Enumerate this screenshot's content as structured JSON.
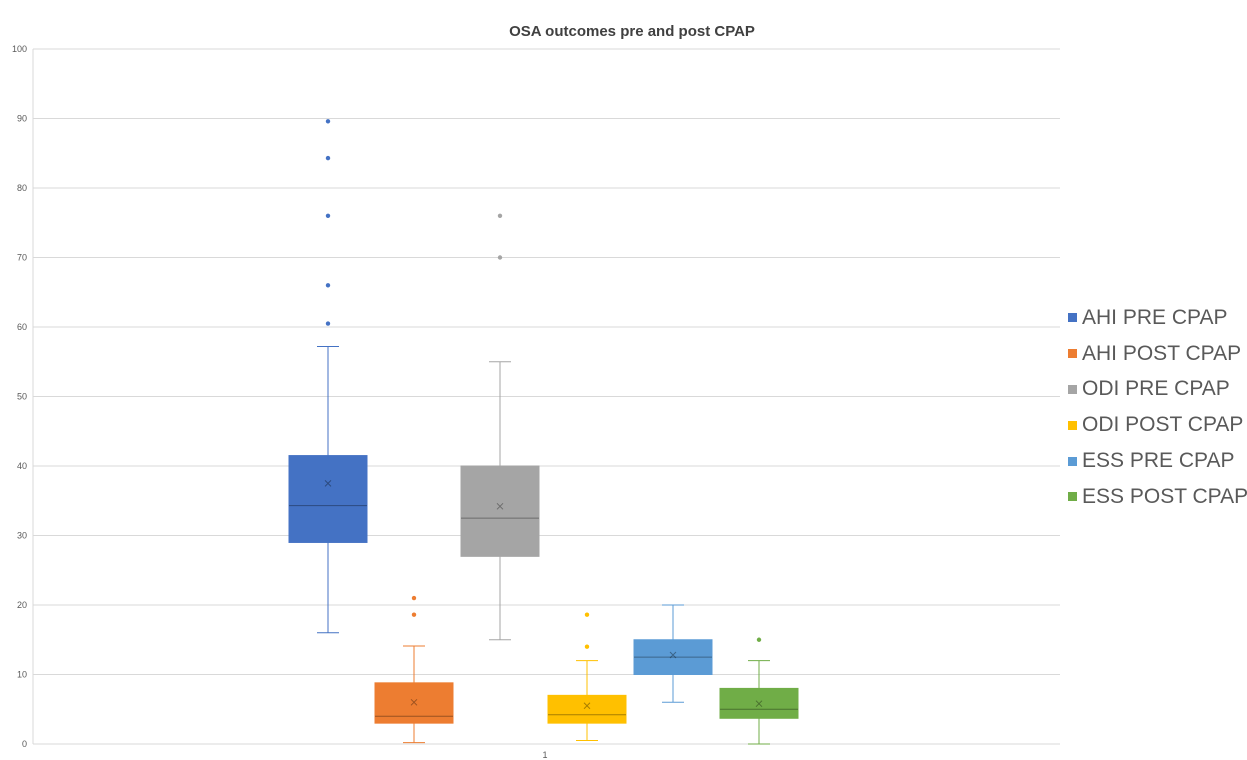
{
  "chart_data": {
    "type": "box",
    "title": "OSA outcomes pre and post CPAP",
    "xlabel": "",
    "ylabel": "",
    "categories": [
      "1"
    ],
    "ylim": [
      0,
      100
    ],
    "yticks": [
      0,
      10,
      20,
      30,
      40,
      50,
      60,
      70,
      80,
      90,
      100
    ],
    "grid": true,
    "legend_position": "right",
    "series": [
      {
        "name": "AHI PRE CPAP",
        "color": "#4472C4",
        "min": 16,
        "q1": 29,
        "median": 34.3,
        "q3": 41.5,
        "max": 57.2,
        "mean": 37.5,
        "outliers": [
          60.5,
          66,
          76,
          84.3,
          89.6
        ]
      },
      {
        "name": "AHI POST CPAP",
        "color": "#ED7D31",
        "min": 0.2,
        "q1": 3,
        "median": 4,
        "q3": 8.8,
        "max": 14.1,
        "mean": 6,
        "outliers": [
          18.6,
          21
        ]
      },
      {
        "name": "ODI PRE CPAP",
        "color": "#A5A5A5",
        "min": 15,
        "q1": 27,
        "median": 32.5,
        "q3": 40,
        "max": 55,
        "mean": 34.2,
        "outliers": [
          70,
          76
        ]
      },
      {
        "name": "ODI POST CPAP",
        "color": "#FFC000",
        "min": 0.5,
        "q1": 3,
        "median": 4.2,
        "q3": 7,
        "max": 12,
        "mean": 5.5,
        "outliers": [
          14,
          18.6
        ]
      },
      {
        "name": "ESS PRE CPAP",
        "color": "#5B9BD5",
        "min": 6,
        "q1": 10,
        "median": 12.5,
        "q3": 15,
        "max": 20,
        "mean": 12.8,
        "outliers": []
      },
      {
        "name": "ESS POST CPAP",
        "color": "#70AD47",
        "min": 0,
        "q1": 3.7,
        "median": 5,
        "q3": 8,
        "max": 12,
        "mean": 5.8,
        "outliers": [
          15
        ]
      }
    ]
  }
}
